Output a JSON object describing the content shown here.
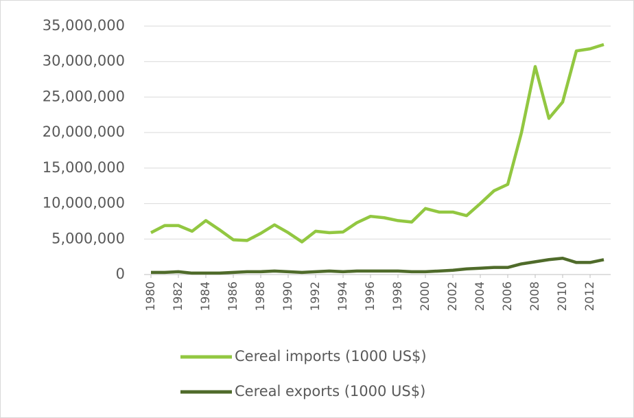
{
  "chart_data": {
    "type": "line",
    "x": [
      1980,
      1981,
      1982,
      1983,
      1984,
      1985,
      1986,
      1987,
      1988,
      1989,
      1990,
      1991,
      1992,
      1993,
      1994,
      1995,
      1996,
      1997,
      1998,
      1999,
      2000,
      2001,
      2002,
      2003,
      2004,
      2005,
      2006,
      2007,
      2008,
      2009,
      2010,
      2011,
      2012,
      2013
    ],
    "xlim": [
      1979.5,
      2013.5
    ],
    "xticks": [
      1980,
      1982,
      1984,
      1986,
      1988,
      1990,
      1992,
      1994,
      1996,
      1998,
      2000,
      2002,
      2004,
      2006,
      2008,
      2010,
      2012
    ],
    "ylim": [
      0,
      35000000
    ],
    "yticks": [
      0,
      {
        "value": 5000000,
        "label": "5,000,000"
      },
      {
        "value": 10000000,
        "label": "10,000,000"
      },
      {
        "value": 15000000,
        "label": "15,000,000"
      },
      {
        "value": 20000000,
        "label": "20,000,000"
      },
      {
        "value": 25000000,
        "label": "25,000,000"
      },
      {
        "value": 30000000,
        "label": "30,000,000"
      },
      {
        "value": 35000000,
        "label": "35,000,000"
      }
    ],
    "grid": true,
    "legend": "bottom",
    "series": [
      {
        "name": "Cereal imports (1000 US$)",
        "color": "#92c741",
        "values": [
          5900000,
          6900000,
          6900000,
          6100000,
          7600000,
          6300000,
          4900000,
          4800000,
          5800000,
          7000000,
          5900000,
          4600000,
          6100000,
          5900000,
          6000000,
          7300000,
          8200000,
          8000000,
          7600000,
          7400000,
          9300000,
          8800000,
          8800000,
          8300000,
          10000000,
          11800000,
          12700000,
          20000000,
          29300000,
          22000000,
          24300000,
          31500000,
          31800000,
          32400000
        ]
      },
      {
        "name": "Cereal exports (1000 US$)",
        "color": "#4f6b2a",
        "values": [
          300000,
          300000,
          400000,
          200000,
          200000,
          200000,
          300000,
          400000,
          400000,
          500000,
          400000,
          300000,
          400000,
          500000,
          400000,
          500000,
          500000,
          500000,
          500000,
          400000,
          400000,
          500000,
          600000,
          800000,
          900000,
          1000000,
          1000000,
          1500000,
          1800000,
          2100000,
          2300000,
          1700000,
          1700000,
          2100000
        ]
      }
    ]
  }
}
